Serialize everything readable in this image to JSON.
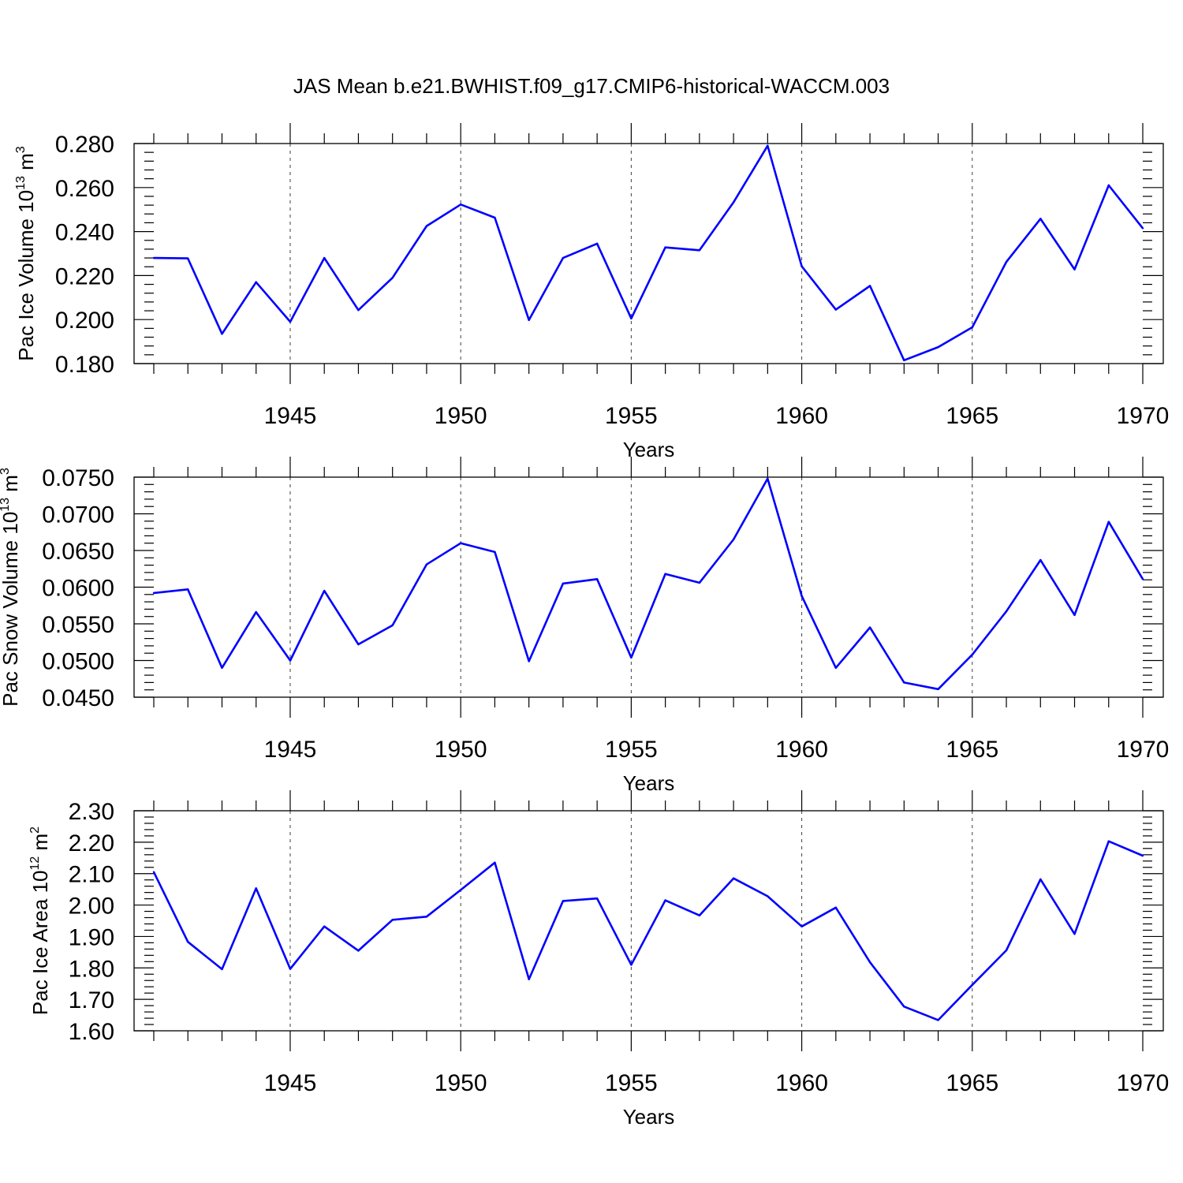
{
  "figure_title": "JAS Mean b.e21.BWHIST.f09_g17.CMIP6-historical-WACCM.003",
  "line_color": "#0000ff",
  "chart_data": [
    {
      "type": "line",
      "ylabel": "Pac Ice Volume 10",
      "ylabel_sup": "13",
      "ylabel_unit": " m",
      "ylabel_unit_sup": "3",
      "xlabel": "Years",
      "xlim": [
        1941,
        1970
      ],
      "ylim": [
        0.18,
        0.28
      ],
      "x_ticks": [
        1945,
        1950,
        1955,
        1960,
        1965,
        1970
      ],
      "x_tick_labels": [
        "1945",
        "1950",
        "1955",
        "1960",
        "1965",
        "1970"
      ],
      "y_ticks": [
        0.18,
        0.2,
        0.22,
        0.24,
        0.26,
        0.28
      ],
      "y_tick_labels": [
        "0.180",
        "0.200",
        "0.220",
        "0.240",
        "0.260",
        "0.280"
      ],
      "grid": "dashed vertical lines at labeled years",
      "x": [
        1941,
        1942,
        1943,
        1944,
        1945,
        1946,
        1947,
        1948,
        1949,
        1950,
        1951,
        1952,
        1953,
        1954,
        1955,
        1956,
        1957,
        1958,
        1959,
        1960,
        1961,
        1962,
        1963,
        1964,
        1965,
        1966,
        1967,
        1968,
        1969,
        1970
      ],
      "y": [
        0.228,
        0.2278,
        0.1935,
        0.217,
        0.199,
        0.228,
        0.2043,
        0.219,
        0.2425,
        0.2523,
        0.2463,
        0.1998,
        0.228,
        0.2345,
        0.2005,
        0.2328,
        0.2315,
        0.2533,
        0.279,
        0.2242,
        0.2045,
        0.2153,
        0.1815,
        0.1875,
        0.1965,
        0.2262,
        0.2458,
        0.2228,
        0.261,
        0.2415
      ]
    },
    {
      "type": "line",
      "ylabel": "Pac Snow Volume 10",
      "ylabel_sup": "13",
      "ylabel_unit": " m",
      "ylabel_unit_sup": "3",
      "xlabel": "Years",
      "xlim": [
        1941,
        1970
      ],
      "ylim": [
        0.045,
        0.075
      ],
      "x_ticks": [
        1945,
        1950,
        1955,
        1960,
        1965,
        1970
      ],
      "x_tick_labels": [
        "1945",
        "1950",
        "1955",
        "1960",
        "1965",
        "1970"
      ],
      "y_ticks": [
        0.045,
        0.05,
        0.055,
        0.06,
        0.065,
        0.07,
        0.075
      ],
      "y_tick_labels": [
        "0.0450",
        "0.0500",
        "0.0550",
        "0.0600",
        "0.0650",
        "0.0700",
        "0.0750"
      ],
      "grid": "dashed vertical lines at labeled years",
      "x": [
        1941,
        1942,
        1943,
        1944,
        1945,
        1946,
        1947,
        1948,
        1949,
        1950,
        1951,
        1952,
        1953,
        1954,
        1955,
        1956,
        1957,
        1958,
        1959,
        1960,
        1961,
        1962,
        1963,
        1964,
        1965,
        1966,
        1967,
        1968,
        1969,
        1970
      ],
      "y": [
        0.0592,
        0.0597,
        0.049,
        0.0566,
        0.05,
        0.0595,
        0.0522,
        0.0548,
        0.0631,
        0.066,
        0.0648,
        0.0499,
        0.0605,
        0.0611,
        0.0504,
        0.0618,
        0.0606,
        0.0665,
        0.0748,
        0.0588,
        0.049,
        0.0545,
        0.047,
        0.0461,
        0.0508,
        0.0567,
        0.0637,
        0.0562,
        0.0689,
        0.0611
      ]
    },
    {
      "type": "line",
      "ylabel": "Pac Ice Area 10",
      "ylabel_sup": "12",
      "ylabel_unit": " m",
      "ylabel_unit_sup": "2",
      "xlabel": "Years",
      "xlim": [
        1941,
        1970
      ],
      "ylim": [
        1.6,
        2.3
      ],
      "x_ticks": [
        1945,
        1950,
        1955,
        1960,
        1965,
        1970
      ],
      "x_tick_labels": [
        "1945",
        "1950",
        "1955",
        "1960",
        "1965",
        "1970"
      ],
      "y_ticks": [
        1.6,
        1.7,
        1.8,
        1.9,
        2.0,
        2.1,
        2.2,
        2.3
      ],
      "y_tick_labels": [
        "1.60",
        "1.70",
        "1.80",
        "1.90",
        "2.00",
        "2.10",
        "2.20",
        "2.30"
      ],
      "grid": "dashed vertical lines at labeled years",
      "x": [
        1941,
        1942,
        1943,
        1944,
        1945,
        1946,
        1947,
        1948,
        1949,
        1950,
        1951,
        1952,
        1953,
        1954,
        1955,
        1956,
        1957,
        1958,
        1959,
        1960,
        1961,
        1962,
        1963,
        1964,
        1965,
        1966,
        1967,
        1968,
        1969,
        1970
      ],
      "y": [
        2.105,
        1.883,
        1.796,
        2.053,
        1.797,
        1.932,
        1.855,
        1.953,
        1.963,
        2.048,
        2.135,
        1.764,
        2.013,
        2.021,
        1.81,
        2.015,
        1.967,
        2.085,
        2.028,
        1.932,
        1.992,
        1.818,
        1.677,
        1.634,
        1.746,
        1.856,
        2.082,
        1.908,
        2.203,
        2.157
      ]
    }
  ]
}
